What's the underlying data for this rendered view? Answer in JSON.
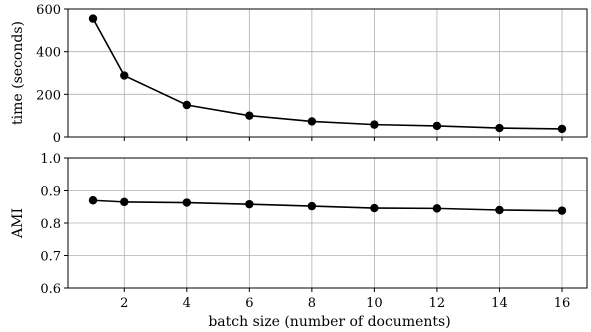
{
  "chart_data": [
    {
      "type": "line",
      "xlabel": "",
      "ylabel": "time (seconds)",
      "x": [
        1,
        2,
        4,
        6,
        8,
        10,
        12,
        14,
        16
      ],
      "series": [
        {
          "values": [
            555,
            288,
            150,
            100,
            73,
            58,
            52,
            42,
            38
          ]
        }
      ],
      "xlim": [
        0.2,
        16.8
      ],
      "ylim": [
        0,
        600
      ],
      "yticks": [
        0,
        200,
        400,
        600
      ],
      "xticks": [
        2,
        4,
        6,
        8,
        10,
        12,
        14,
        16
      ],
      "xtick_labels_shown": false,
      "grid": true,
      "marker": "circle",
      "color": "#000000"
    },
    {
      "type": "line",
      "xlabel": "batch size (number of documents)",
      "ylabel": "AMI",
      "x": [
        1,
        2,
        4,
        6,
        8,
        10,
        12,
        14,
        16
      ],
      "series": [
        {
          "values": [
            0.87,
            0.865,
            0.863,
            0.858,
            0.852,
            0.846,
            0.845,
            0.84,
            0.838
          ]
        }
      ],
      "xlim": [
        0.2,
        16.8
      ],
      "ylim": [
        0.6,
        1.0
      ],
      "yticks": [
        0.6,
        0.7,
        0.8,
        0.9,
        1.0
      ],
      "ytick_labels": [
        "0.6",
        "0.7",
        "0.8",
        "0.9",
        "1.0"
      ],
      "xticks": [
        2,
        4,
        6,
        8,
        10,
        12,
        14,
        16
      ],
      "xtick_labels_shown": true,
      "grid": true,
      "marker": "circle",
      "color": "#000000"
    }
  ]
}
